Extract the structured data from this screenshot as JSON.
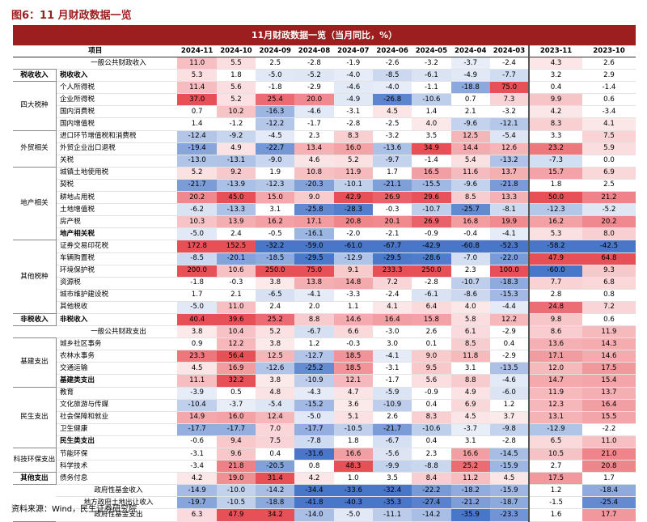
{
  "header": {
    "title": "图6：11 月财政数据一览"
  },
  "table": {
    "title": "11月财政数据一览（当月同比，%）",
    "item_header": "项目",
    "columns": [
      "2024-11",
      "2024-10",
      "2024-09",
      "2024-08",
      "2024-07",
      "2024-06",
      "2024-05",
      "2024-04",
      "2024-03",
      "2023-11",
      "2023-10"
    ],
    "sections": [
      {
        "rows": [
          {
            "item": "一般公共财政收入",
            "values": [
              "11.0",
              "5.5",
              "2.5",
              "-2.8",
              "-1.9",
              "-2.6",
              "-3.2",
              "-3.7",
              "-2.4",
              "4.3",
              "2.6"
            ]
          }
        ]
      },
      {
        "group": "税收收入",
        "rows": [
          {
            "item": "税收收入",
            "bold": true,
            "values": [
              "5.3",
              "1.8",
              "-5.0",
              "-5.2",
              "-4.0",
              "-8.5",
              "-6.1",
              "-4.9",
              "-7.7",
              "3.2",
              "2.9"
            ]
          }
        ]
      },
      {
        "group": "四大税种",
        "rows": [
          {
            "item": "个人所得税",
            "values": [
              "11.4",
              "5.6",
              "-1.8",
              "-2.9",
              "-4.6",
              "-4.0",
              "-1.1",
              "-18.8",
              "75.0",
              "0.4",
              "-1.4"
            ]
          },
          {
            "item": "企业所得税",
            "values": [
              "37.0",
              "5.2",
              "25.4",
              "20.0",
              "-4.9",
              "-26.8",
              "-10.6",
              "0.7",
              "7.3",
              "9.9",
              "0.6"
            ]
          },
          {
            "item": "国内消费税",
            "values": [
              "0.7",
              "10.2",
              "-16.3",
              "-4.6",
              "-3.1",
              "4.5",
              "1.4",
              "2.1",
              "-3.2",
              "4.2",
              "-3.4"
            ]
          },
          {
            "item": "国内增值税",
            "values": [
              "1.4",
              "-1.2",
              "-12.2",
              "-1.7",
              "-2.8",
              "-2.5",
              "4.0",
              "-9.6",
              "-12.1",
              "8.3",
              "4.1"
            ]
          }
        ]
      },
      {
        "group": "外贸相关",
        "rows": [
          {
            "item": "进口环节增值税和消费税",
            "values": [
              "-12.4",
              "-9.2",
              "-4.5",
              "2.3",
              "8.3",
              "-3.2",
              "3.5",
              "12.5",
              "-5.4",
              "3.3",
              "7.5"
            ]
          },
          {
            "item": "外贸企业出口退税",
            "values": [
              "-19.4",
              "4.9",
              "-22.7",
              "13.4",
              "16.0",
              "-13.6",
              "34.9",
              "14.4",
              "12.6",
              "23.2",
              "5.9"
            ]
          },
          {
            "item": "关税",
            "values": [
              "-13.0",
              "-13.1",
              "-9.0",
              "4.6",
              "5.2",
              "-9.7",
              "-1.4",
              "5.4",
              "-13.2",
              "-7.3",
              "0.0"
            ]
          }
        ]
      },
      {
        "group": "地产相关",
        "rows": [
          {
            "item": "城镇土地使用税",
            "values": [
              "5.2",
              "9.2",
              "1.9",
              "10.8",
              "11.9",
              "1.7",
              "16.5",
              "11.6",
              "13.7",
              "15.7",
              "6.9"
            ]
          },
          {
            "item": "契税",
            "values": [
              "-21.7",
              "-13.9",
              "-12.3",
              "-20.3",
              "-10.1",
              "-21.1",
              "-15.5",
              "-9.6",
              "-21.8",
              "1.8",
              "2.5"
            ]
          },
          {
            "item": "耕地占用税",
            "values": [
              "20.2",
              "45.0",
              "15.0",
              "9.0",
              "42.9",
              "26.9",
              "29.6",
              "8.5",
              "13.3",
              "50.0",
              "21.2"
            ]
          },
          {
            "item": "土地增值税",
            "values": [
              "-6.2",
              "-13.3",
              "3.1",
              "-25.8",
              "-28.3",
              "-0.3",
              "-10.7",
              "-25.7",
              "-8.1",
              "-12.3",
              "-5.2"
            ]
          },
          {
            "item": "房产税",
            "values": [
              "10.3",
              "13.9",
              "16.2",
              "17.1",
              "20.8",
              "20.1",
              "26.9",
              "16.8",
              "19.9",
              "16.2",
              "20.2"
            ]
          },
          {
            "item": "地产相关税",
            "bold": true,
            "values": [
              "-5.0",
              "2.4",
              "-0.5",
              "-16.1",
              "-2.0",
              "-2.1",
              "-0.9",
              "-0.4",
              "-4.1",
              "5.3",
              "8.0"
            ]
          }
        ]
      },
      {
        "group": "其他税种",
        "rows": [
          {
            "item": "证券交易印花税",
            "values": [
              "172.8",
              "152.5",
              "-32.2",
              "-59.0",
              "-61.0",
              "-67.7",
              "-42.9",
              "-60.8",
              "-52.3",
              "-58.2",
              "-42.5"
            ]
          },
          {
            "item": "车辆购置税",
            "values": [
              "-8.5",
              "-20.1",
              "-18.5",
              "-29.5",
              "-12.9",
              "-29.5",
              "-28.6",
              "-7.0",
              "-22.0",
              "47.9",
              "64.8"
            ]
          },
          {
            "item": "环境保护税",
            "values": [
              "200.0",
              "10.6",
              "250.0",
              "75.0",
              "9.1",
              "233.3",
              "250.0",
              "2.3",
              "100.0",
              "-60.0",
              "9.3"
            ]
          },
          {
            "item": "资源税",
            "values": [
              "-1.8",
              "-0.3",
              "3.8",
              "13.8",
              "14.8",
              "7.2",
              "-2.8",
              "-10.7",
              "-18.3",
              "7.7",
              "6.8"
            ]
          },
          {
            "item": "城市维护建设税",
            "values": [
              "1.7",
              "2.1",
              "-6.5",
              "-4.1",
              "-3.3",
              "-2.4",
              "-6.1",
              "-8.6",
              "-15.3",
              "2.8",
              "0.8"
            ]
          },
          {
            "item": "其他税收",
            "values": [
              "-5.0",
              "11.0",
              "2.4",
              "2.0",
              "1.1",
              "4.1",
              "6.4",
              "4.0",
              "-4.4",
              "24.8",
              "7.2"
            ]
          }
        ]
      },
      {
        "group": "非税收入",
        "rows": [
          {
            "item": "非税收入",
            "bold": true,
            "values": [
              "40.4",
              "39.6",
              "25.2",
              "8.8",
              "14.6",
              "16.4",
              "15.8",
              "5.8",
              "12.2",
              "9.8",
              "0.6"
            ]
          }
        ]
      },
      {
        "rows": [
          {
            "item": "一般公共财政支出",
            "values": [
              "3.8",
              "10.4",
              "5.2",
              "-6.7",
              "6.6",
              "-3.0",
              "2.6",
              "6.1",
              "-2.9",
              "8.6",
              "11.9"
            ]
          }
        ]
      },
      {
        "group": "基建支出",
        "rows": [
          {
            "item": "城乡社区事务",
            "values": [
              "0.9",
              "12.2",
              "3.8",
              "1.2",
              "-0.3",
              "3.0",
              "0.1",
              "8.5",
              "0.4",
              "13.6",
              "14.3"
            ]
          },
          {
            "item": "农林水事务",
            "values": [
              "23.3",
              "56.4",
              "12.5",
              "-12.7",
              "18.5",
              "-4.1",
              "9.0",
              "11.8",
              "-2.9",
              "17.1",
              "14.6"
            ]
          },
          {
            "item": "交通运输",
            "values": [
              "4.5",
              "16.9",
              "-12.6",
              "-25.2",
              "18.5",
              "-3.1",
              "9.5",
              "3.1",
              "-13.5",
              "12.0",
              "17.5"
            ]
          },
          {
            "item": "基建类支出",
            "bold": true,
            "values": [
              "11.1",
              "32.2",
              "3.8",
              "-10.9",
              "12.1",
              "-1.7",
              "5.6",
              "8.8",
              "-4.6",
              "14.7",
              "15.4"
            ]
          }
        ]
      },
      {
        "group": "民生支出",
        "rows": [
          {
            "item": "教育",
            "values": [
              "-3.9",
              "0.5",
              "4.8",
              "-4.3",
              "4.7",
              "-5.9",
              "-0.9",
              "4.9",
              "-6.0",
              "11.9",
              "13.7"
            ]
          },
          {
            "item": "文化旅游与传媒",
            "values": [
              "-10.4",
              "-3.7",
              "-5.4",
              "-15.2",
              "3.6",
              "-10.9",
              "0.4",
              "6.9",
              "1.2",
              "12.3",
              "16.4"
            ]
          },
          {
            "item": "社会保障和就业",
            "values": [
              "14.9",
              "16.0",
              "12.4",
              "-5.0",
              "5.1",
              "2.6",
              "8.3",
              "4.5",
              "3.7",
              "13.1",
              "15.5"
            ]
          },
          {
            "item": "卫生健康",
            "values": [
              "-17.7",
              "-17.7",
              "7.0",
              "-17.7",
              "-10.5",
              "-21.7",
              "-10.6",
              "-3.7",
              "-9.8",
              "-12.9",
              "-2.2"
            ]
          },
          {
            "item": "民生类支出",
            "bold": true,
            "values": [
              "-0.6",
              "9.4",
              "7.5",
              "-7.8",
              "1.8",
              "-6.7",
              "0.4",
              "3.1",
              "-2.8",
              "6.5",
              "11.0"
            ]
          }
        ]
      },
      {
        "group": "科技环保支出",
        "rows": [
          {
            "item": "节能环保",
            "values": [
              "-3.1",
              "9.6",
              "0.4",
              "-31.6",
              "16.6",
              "-5.6",
              "2.3",
              "16.6",
              "-14.5",
              "10.5",
              "21.0"
            ]
          },
          {
            "item": "科学技术",
            "values": [
              "-3.4",
              "21.8",
              "-20.5",
              "0.8",
              "48.3",
              "-9.9",
              "-8.8",
              "25.2",
              "-15.9",
              "2.7",
              "20.8"
            ]
          }
        ]
      },
      {
        "group": "其他支出",
        "rows": [
          {
            "item": "债务付息",
            "values": [
              "4.2",
              "19.0",
              "31.4",
              "4.2",
              "1.0",
              "3.5",
              "8.4",
              "11.2",
              "4.5",
              "17.5",
              "1.7"
            ]
          }
        ]
      },
      {
        "rows": [
          {
            "item": "政府性基金收入",
            "values": [
              "-14.9",
              "-10.0",
              "-14.2",
              "-34.4",
              "-33.6",
              "-32.4",
              "-22.2",
              "-18.2",
              "-15.9",
              "1.2",
              "-18.4"
            ]
          },
          {
            "item": "地方政府土地出让收入",
            "values": [
              "-19.7",
              "-10.5",
              "-18.8",
              "-41.8",
              "-40.3",
              "-35.3",
              "-27.4",
              "-21.2",
              "-18.7",
              "-1.5",
              "-25.4"
            ]
          },
          {
            "item": "政府性基金支出",
            "values": [
              "6.3",
              "47.9",
              "34.2",
              "-14.0",
              "-5.0",
              "-11.1",
              "-14.2",
              "-35.9",
              "-23.3",
              "1.6",
              "17.7"
            ]
          }
        ]
      }
    ]
  },
  "footer": {
    "source": "资料来源：Wind，民生证券研究院"
  }
}
